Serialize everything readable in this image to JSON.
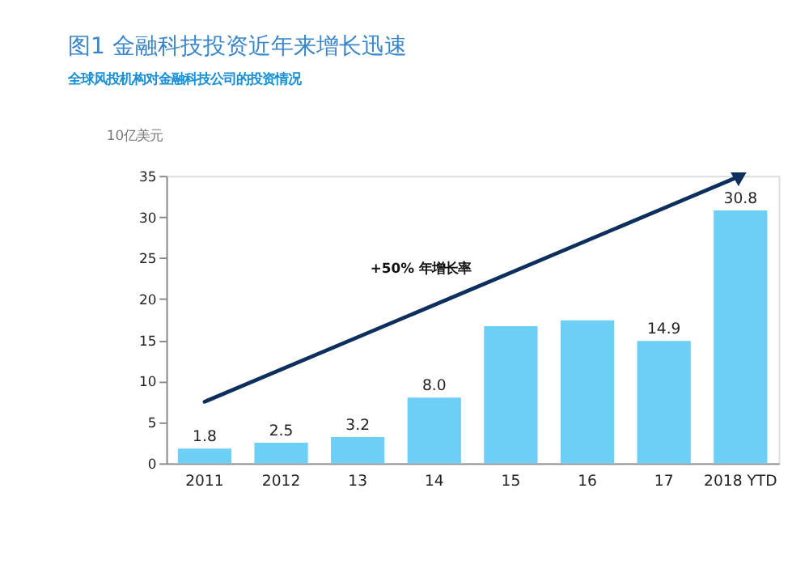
{
  "chart_data": {
    "type": "bar",
    "title": "图1  金融科技投资近年来增长迅速",
    "subtitle": "全球风投机构对金融科技公司的投资情况",
    "ylabel": "10亿美元",
    "categories": [
      "2011",
      "2012",
      "13",
      "14",
      "15",
      "16",
      "17",
      "2018 YTD"
    ],
    "series": [
      {
        "color": "#6dcff6",
        "values": [
          1.8,
          2.5,
          3.2,
          8.0,
          16.7,
          17.4,
          14.9,
          30.8
        ],
        "value_labels": [
          "1.8",
          "2.5",
          "3.2",
          "8.0",
          null,
          null,
          "14.9",
          "30.8"
        ]
      },
      {
        "type": "line",
        "color": "#0d2f5e",
        "values": [
          7.5,
          null,
          null,
          null,
          null,
          null,
          null,
          35.0
        ]
      }
    ],
    "ylim": [
      0,
      35
    ],
    "yticks": [
      0,
      5,
      10,
      15,
      20,
      25,
      30,
      35
    ],
    "grid": false,
    "annotations": [
      "+50% 年增长率"
    ]
  }
}
